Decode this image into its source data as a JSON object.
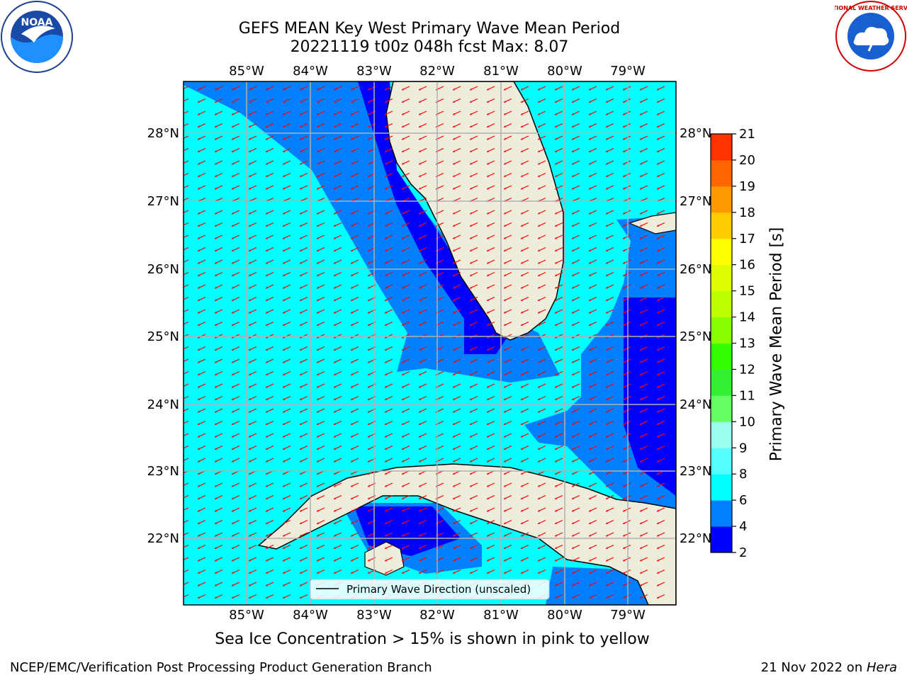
{
  "title": {
    "line1": "GEFS MEAN Key West Primary Wave Mean Period",
    "line2": "20221119 t00z 048h fcst   Max: 8.07"
  },
  "map": {
    "lon_labels": [
      "85°W",
      "84°W",
      "83°W",
      "82°W",
      "81°W",
      "80°W",
      "79°W"
    ],
    "lat_labels": [
      "28°N",
      "27°N",
      "26°N",
      "25°N",
      "24°N",
      "23°N",
      "22°N"
    ],
    "legend_label": "Primary Wave Direction (unscaled)",
    "colors": {
      "land": "#eeeddc",
      "ocean_light": "#00ffff",
      "ocean_mid": "#0080ff",
      "ocean_dark": "#0000ff",
      "arrows": "#ff0000",
      "grid": "#b0b0b0"
    }
  },
  "colorbar": {
    "title": "Primary Wave Mean Period [s]",
    "ticks": [
      "2",
      "4",
      "6",
      "8",
      "9",
      "10",
      "11",
      "12",
      "13",
      "14",
      "15",
      "16",
      "17",
      "18",
      "19",
      "20",
      "21"
    ],
    "colors": [
      "#0000ff",
      "#0080ff",
      "#00ffff",
      "#55ffff",
      "#99ffee",
      "#66ff66",
      "#33ee33",
      "#33ff00",
      "#88ff00",
      "#bbff00",
      "#ddff00",
      "#ffff00",
      "#ffcc00",
      "#ff9900",
      "#ff6600",
      "#ff3300",
      "#ff0000"
    ]
  },
  "ice_note": "Sea Ice Concentration > 15% is shown in pink to yellow",
  "footer": {
    "left": "NCEP/EMC/Verification Post Processing Product Generation Branch",
    "right_date": "21 Nov 2022 on ",
    "right_machine": "Hera"
  },
  "logos": {
    "noaa_text": "NOAA",
    "nws_text": "NATIONAL WEATHER SERVICE"
  }
}
